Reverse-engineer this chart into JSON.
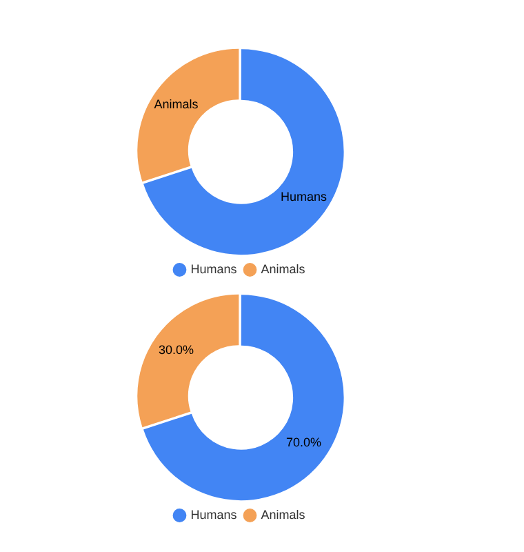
{
  "chart_data": [
    {
      "type": "donut",
      "categories": [
        "Humans",
        "Animals"
      ],
      "values": [
        70,
        30
      ],
      "colors": [
        "#4285f4",
        "#f4a156"
      ],
      "value_labels": [
        "Humans",
        "Animals"
      ],
      "legend": "bottom"
    },
    {
      "type": "donut",
      "categories": [
        "Humans",
        "Animals"
      ],
      "values": [
        70,
        30
      ],
      "colors": [
        "#4285f4",
        "#f4a156"
      ],
      "value_labels": [
        "70.0%",
        "30.0%"
      ],
      "legend": "bottom"
    }
  ]
}
